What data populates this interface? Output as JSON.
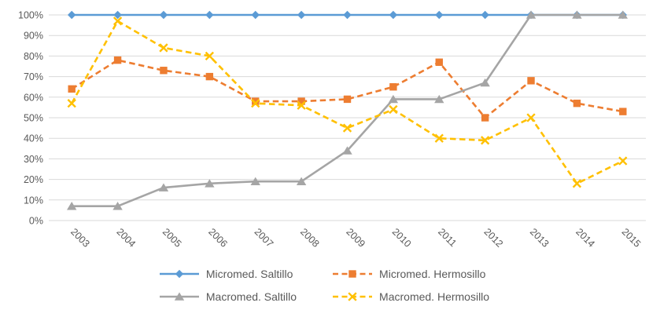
{
  "chart_data": {
    "type": "line",
    "title": "",
    "xlabel": "",
    "ylabel": "",
    "categories": [
      "2003",
      "2004",
      "2005",
      "2006",
      "2007",
      "2008",
      "2009",
      "2010",
      "2011",
      "2012",
      "2013",
      "2014",
      "2015"
    ],
    "series": [
      {
        "name": "Micromed. Saltillo",
        "color": "#5B9BD5",
        "marker": "diamond",
        "line_style": "solid",
        "values": [
          100,
          100,
          100,
          100,
          100,
          100,
          100,
          100,
          100,
          100,
          100,
          100,
          100
        ]
      },
      {
        "name": "Micromed. Hermosillo",
        "color": "#ED7D31",
        "marker": "square",
        "line_style": "dashed",
        "values": [
          64,
          78,
          73,
          70,
          58,
          58,
          59,
          65,
          77,
          50,
          68,
          57,
          53
        ]
      },
      {
        "name": "Macromed. Saltillo",
        "color": "#A5A5A5",
        "marker": "triangle",
        "line_style": "solid",
        "values": [
          7,
          7,
          16,
          18,
          19,
          19,
          34,
          59,
          59,
          67,
          100,
          100,
          100
        ]
      },
      {
        "name": "Macromed. Hermosillo",
        "color": "#FFC000",
        "marker": "x",
        "line_style": "dashed",
        "values": [
          57,
          97,
          84,
          80,
          57,
          56,
          45,
          54,
          40,
          39,
          50,
          18,
          29
        ]
      }
    ],
    "y_axis": {
      "min": 0,
      "max": 100,
      "step": 10,
      "tick_labels": [
        "0%",
        "10%",
        "20%",
        "30%",
        "40%",
        "50%",
        "60%",
        "70%",
        "80%",
        "90%",
        "100%"
      ]
    },
    "x_label_rotation_deg": 45,
    "grid": "horizontal",
    "gridline_color": "#D9D9D9",
    "axis_text_color": "#595959",
    "legend_position": "bottom",
    "legend_rows": [
      [
        "Micromed. Saltillo",
        "Micromed. Hermosillo"
      ],
      [
        "Macromed. Saltillo",
        "Macromed. Hermosillo"
      ]
    ]
  }
}
